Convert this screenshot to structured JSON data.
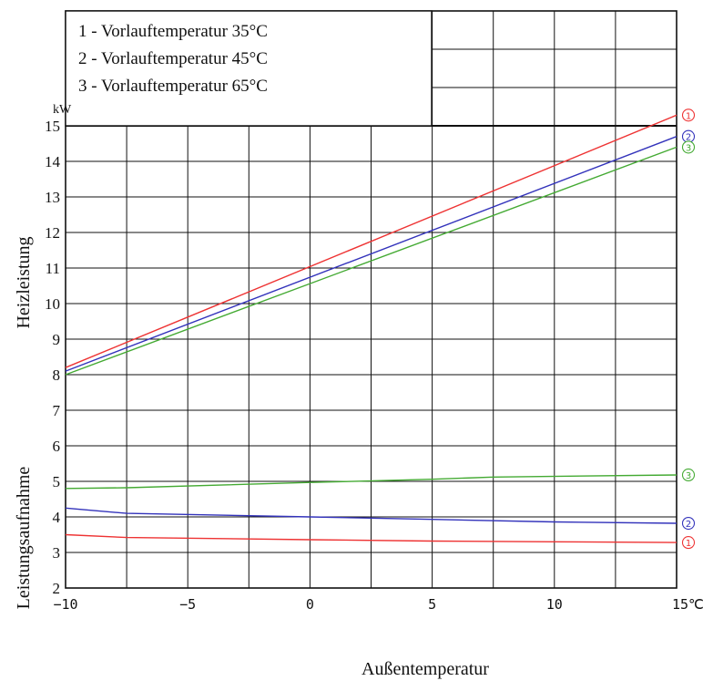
{
  "chart_data": {
    "type": "line",
    "x_unit": "℃",
    "y_unit": "kW",
    "xlabel": "Außentemperatur",
    "ylabel_upper": "Heizleistung",
    "ylabel_lower": "Leistungsaufnahme",
    "xlim": [
      -10,
      15
    ],
    "ylim": [
      2,
      15
    ],
    "x_ticks": [
      -10,
      -5,
      0,
      5,
      10,
      15
    ],
    "x_tick_labels": [
      "−10",
      "−5",
      "0",
      "5",
      "10",
      "15"
    ],
    "y_ticks": [
      2,
      3,
      4,
      5,
      6,
      7,
      8,
      9,
      10,
      11,
      12,
      13,
      14,
      15
    ],
    "grid": true,
    "legend_position": "top-left",
    "legend": [
      {
        "label": "1 - Vorlauftemperatur 35°C"
      },
      {
        "label": "2 - Vorlauftemperatur 45°C"
      },
      {
        "label": "3 - Vorlauftemperatur 65°C"
      }
    ],
    "series": [
      {
        "id": "heating-1",
        "marker": "①",
        "color": "#ee3333",
        "points": [
          [
            -10,
            8.2
          ],
          [
            15,
            15.3
          ]
        ]
      },
      {
        "id": "heating-2",
        "marker": "②",
        "color": "#3333bb",
        "points": [
          [
            -10,
            8.1
          ],
          [
            15,
            14.7
          ]
        ]
      },
      {
        "id": "heating-3",
        "marker": "③",
        "color": "#44aa33",
        "points": [
          [
            -10,
            8.0
          ],
          [
            15,
            14.4
          ]
        ]
      },
      {
        "id": "power-1",
        "marker": "①",
        "color": "#ee3333",
        "points": [
          [
            -10,
            3.5
          ],
          [
            -7.5,
            3.42
          ],
          [
            0,
            3.36
          ],
          [
            5,
            3.32
          ],
          [
            10,
            3.3
          ],
          [
            15,
            3.28
          ]
        ]
      },
      {
        "id": "power-2",
        "marker": "②",
        "color": "#3333bb",
        "points": [
          [
            -10,
            4.25
          ],
          [
            -7.5,
            4.1
          ],
          [
            0,
            4.0
          ],
          [
            5,
            3.93
          ],
          [
            10,
            3.86
          ],
          [
            15,
            3.82
          ]
        ]
      },
      {
        "id": "power-3",
        "marker": "③",
        "color": "#44aa33",
        "points": [
          [
            -10,
            4.8
          ],
          [
            -7.5,
            4.82
          ],
          [
            0,
            4.97
          ],
          [
            5,
            5.06
          ],
          [
            7.5,
            5.12
          ],
          [
            15,
            5.18
          ]
        ]
      }
    ]
  }
}
